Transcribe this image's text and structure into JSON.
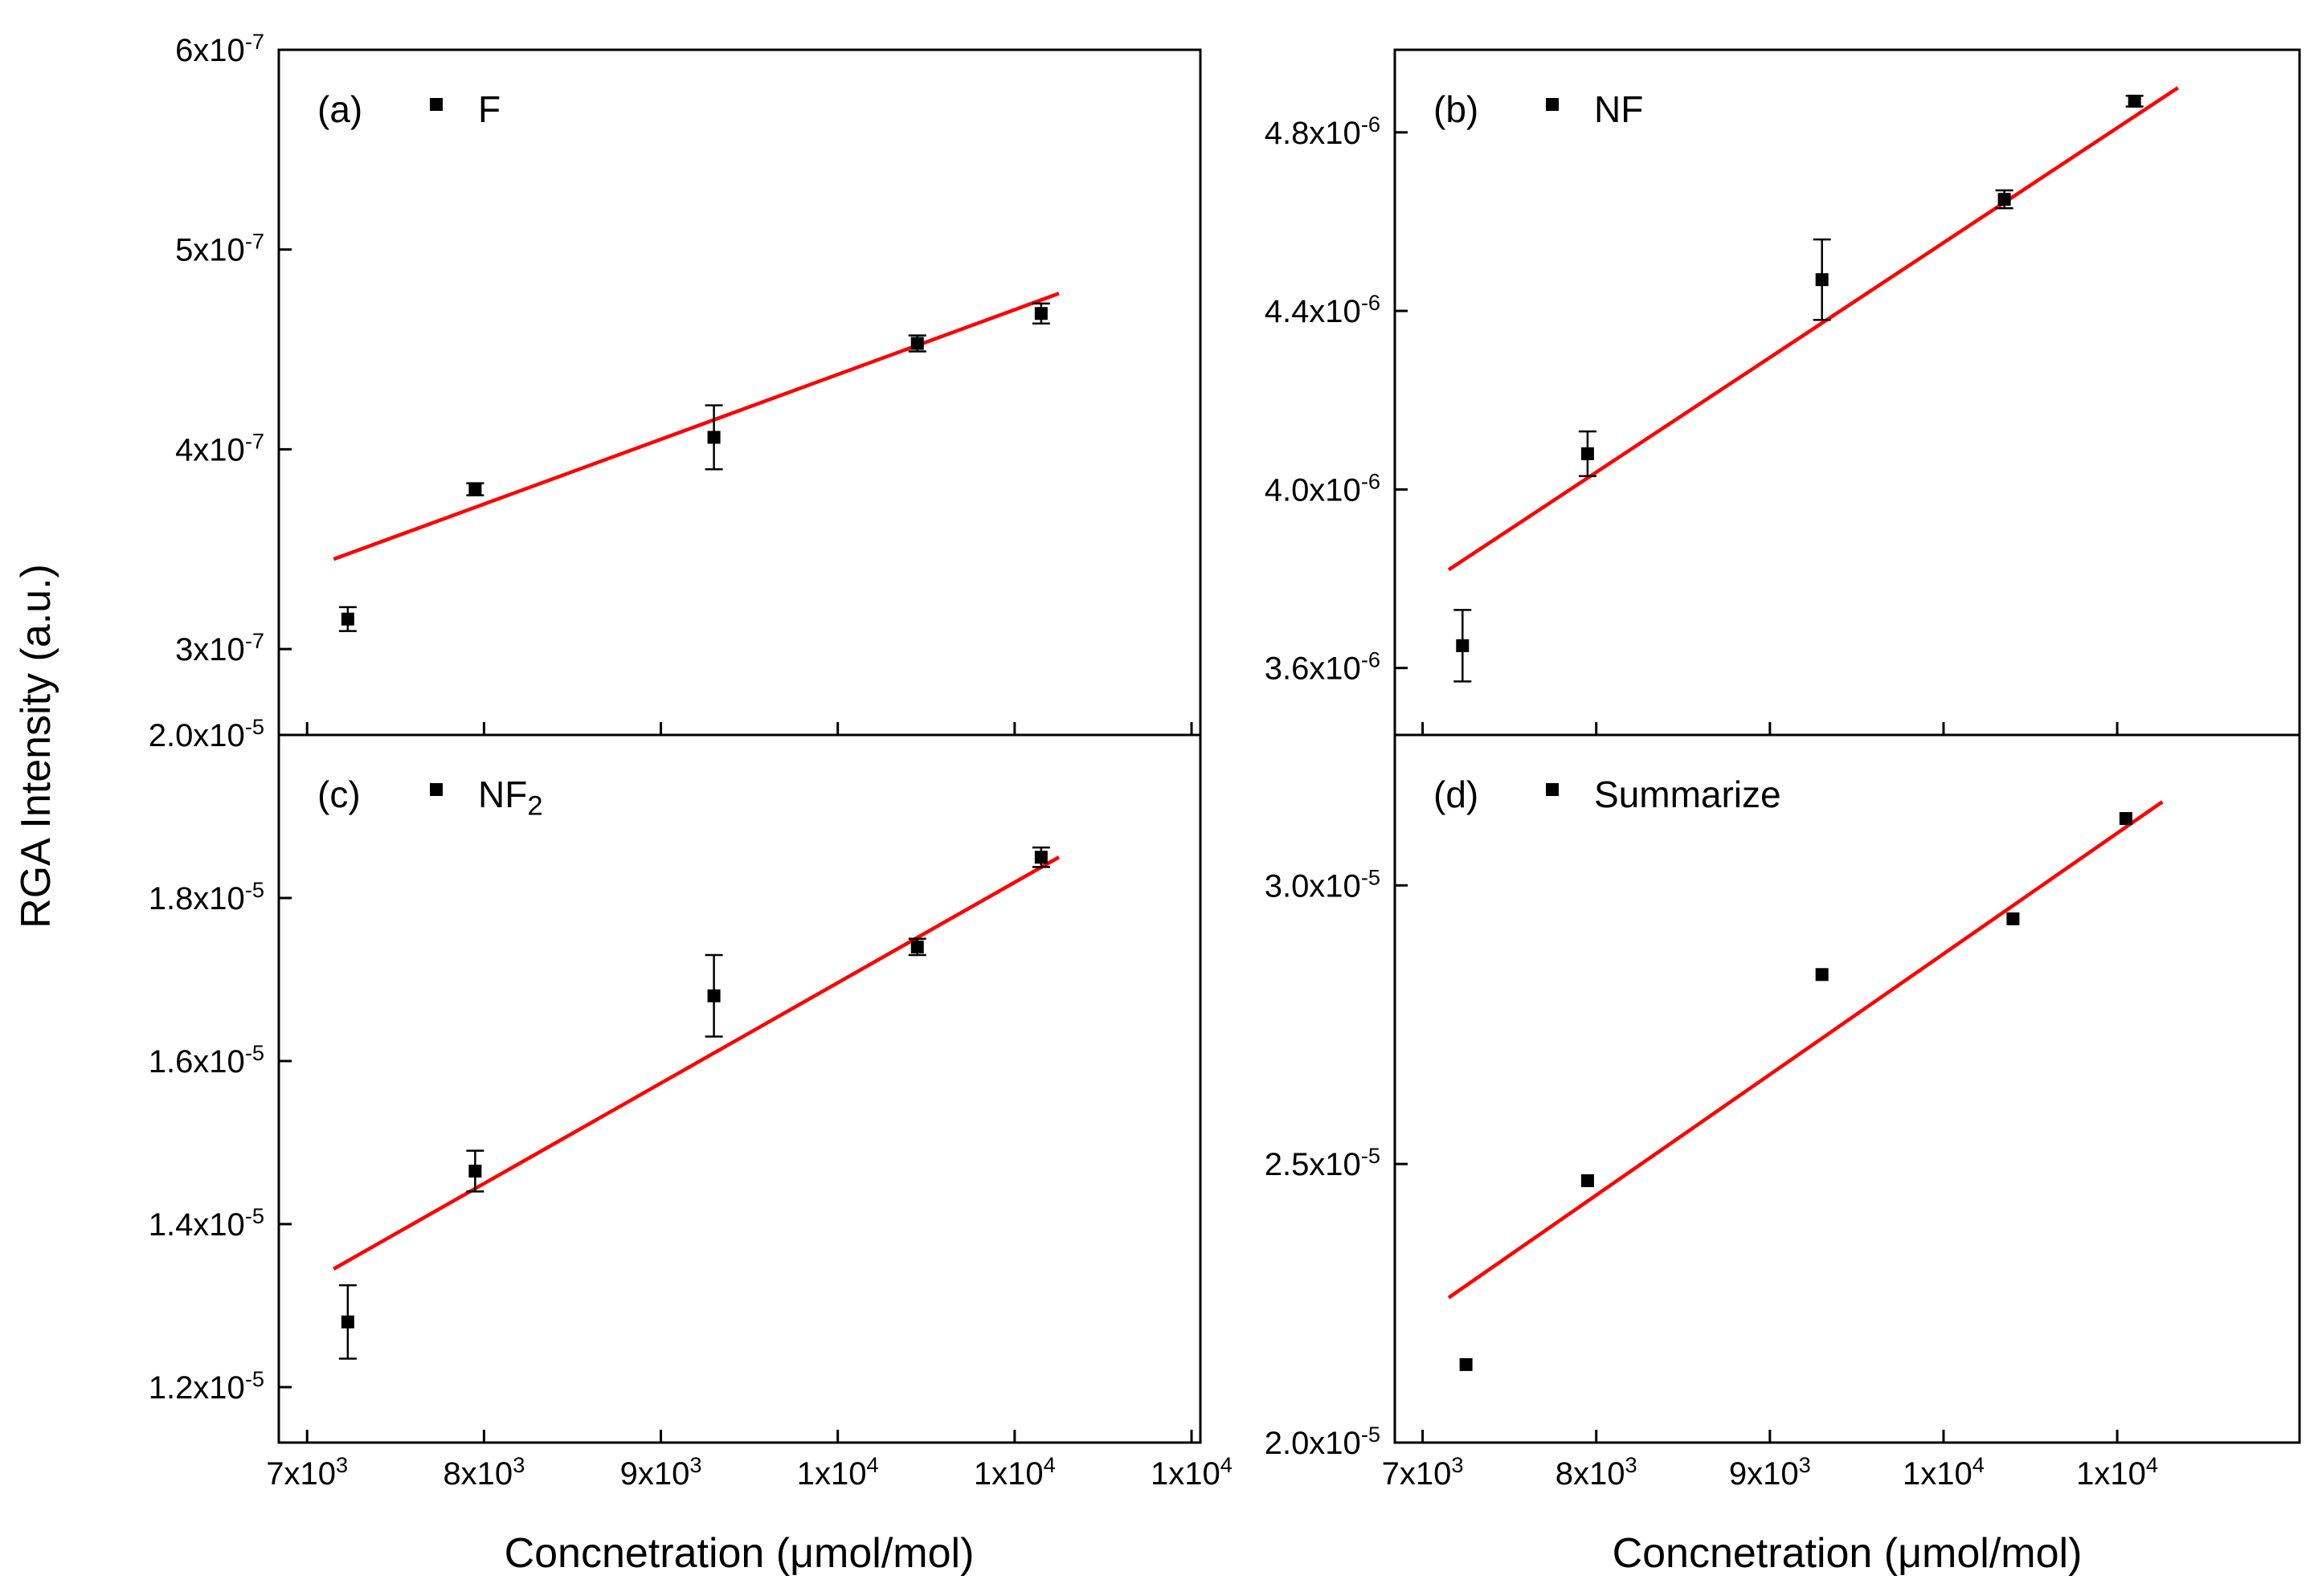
{
  "axis_titles": {
    "y": "RGA Intensity (a.u.)",
    "x": "Concnetration (μmol/mol)"
  },
  "colors": {
    "fit_line": "#ff0000",
    "marker": "#000000",
    "axis": "#000000",
    "background": "#ffffff"
  },
  "chart_data": [
    {
      "type": "scatter",
      "panel_key": "a",
      "panel_tag": "(a)",
      "legend_label": "F",
      "x": [
        7230,
        7950,
        9300,
        10450,
        11150
      ],
      "y": [
        3.15e-07,
        3.8e-07,
        4.06e-07,
        4.53e-07,
        4.68e-07
      ],
      "yerr": [
        6e-09,
        3e-09,
        1.6e-08,
        4e-09,
        5e-09
      ],
      "fit_line": {
        "x": [
          7150,
          11250
        ],
        "y": [
          3.45e-07,
          4.78e-07
        ]
      },
      "xlim": [
        6840,
        12050
      ],
      "ylim": [
        2.57e-07,
        6e-07
      ],
      "x_ticks": {
        "values": [
          7000,
          8000,
          9000,
          10000,
          11000,
          12000
        ],
        "labels": [
          "7x10^3",
          "8x10^3",
          "9x10^3",
          "1x10^4",
          "1x10^4",
          "1x10^4"
        ],
        "show_labels": false
      },
      "y_ticks": {
        "values": [
          3e-07,
          4e-07,
          5e-07,
          6e-07
        ],
        "labels": [
          "3x10^-7",
          "4x10^-7",
          "5x10^-7",
          "6x10^-7"
        ]
      }
    },
    {
      "type": "scatter",
      "panel_key": "b",
      "panel_tag": "(b)",
      "legend_label": "NF",
      "x": [
        7230,
        7950,
        9300,
        10350,
        11100
      ],
      "y": [
        3.65e-06,
        4.08e-06,
        4.47e-06,
        4.65e-06,
        4.87e-06
      ],
      "yerr": [
        8e-08,
        5e-08,
        9e-08,
        2e-08,
        1.2e-08
      ],
      "fit_line": {
        "x": [
          7150,
          11350
        ],
        "y": [
          3.82e-06,
          4.9e-06
        ]
      },
      "xlim": [
        6840,
        12050
      ],
      "ylim": [
        3.45e-06,
        4.985e-06
      ],
      "x_ticks": {
        "values": [
          7000,
          8000,
          9000,
          10000,
          11000
        ],
        "labels": [
          "7x10^3",
          "8x10^3",
          "9x10^3",
          "1x10^4",
          "1x10^4"
        ],
        "show_labels": false
      },
      "y_ticks": {
        "values": [
          3.6e-06,
          4e-06,
          4.4e-06,
          4.8e-06
        ],
        "labels": [
          "3.6x10^-6",
          "4.0x10^-6",
          "4.4x10^-6",
          "4.8x10^-6"
        ]
      }
    },
    {
      "type": "scatter",
      "panel_key": "c",
      "panel_tag": "(c)",
      "legend_label": "NF_2",
      "x": [
        7230,
        7950,
        9300,
        10450,
        11150
      ],
      "y": [
        1.28e-05,
        1.465e-05,
        1.68e-05,
        1.74e-05,
        1.85e-05
      ],
      "yerr": [
        4.5e-07,
        2.5e-07,
        5e-07,
        1e-07,
        1.2e-07
      ],
      "fit_line": {
        "x": [
          7150,
          11250
        ],
        "y": [
          1.345e-05,
          1.85e-05
        ]
      },
      "xlim": [
        6840,
        12050
      ],
      "ylim": [
        1.132e-05,
        2e-05
      ],
      "x_ticks": {
        "values": [
          7000,
          8000,
          9000,
          10000,
          11000,
          12000
        ],
        "labels": [
          "7x10^3",
          "8x10^3",
          "9x10^3",
          "1x10^4",
          "1x10^4",
          "1x10^4"
        ],
        "show_labels": true
      },
      "y_ticks": {
        "values": [
          1.2e-05,
          1.4e-05,
          1.6e-05,
          1.8e-05,
          2e-05
        ],
        "labels": [
          "1.2x10^-5",
          "1.4x10^-5",
          "1.6x10^-5",
          "1.8x10^-5",
          "2.0x10^-5"
        ]
      }
    },
    {
      "type": "scatter",
      "panel_key": "d",
      "panel_tag": "(d)",
      "legend_label": "Summarize",
      "x": [
        7250,
        7950,
        9300,
        10400,
        11050
      ],
      "y": [
        2.14e-05,
        2.47e-05,
        2.84e-05,
        2.94e-05,
        3.12e-05
      ],
      "yerr": [
        0,
        0,
        0,
        0,
        0
      ],
      "fit_line": {
        "x": [
          7150,
          11260
        ],
        "y": [
          2.26e-05,
          3.15e-05
        ]
      },
      "xlim": [
        6840,
        12050
      ],
      "ylim": [
        2e-05,
        3.27e-05
      ],
      "x_ticks": {
        "values": [
          7000,
          8000,
          9000,
          10000,
          11000
        ],
        "labels": [
          "7x10^3",
          "8x10^3",
          "9x10^3",
          "1x10^4",
          "1x10^4"
        ],
        "show_labels": true
      },
      "y_ticks": {
        "values": [
          2e-05,
          2.5e-05,
          3e-05
        ],
        "labels": [
          "2.0x10^-5",
          "2.5x10^-5",
          "3.0x10^-5"
        ]
      }
    }
  ]
}
